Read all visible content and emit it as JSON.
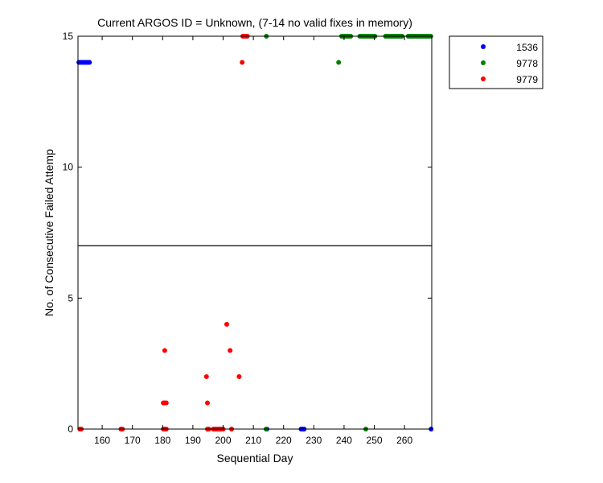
{
  "chart_data": {
    "type": "scatter",
    "title": "Current ARGOS ID = Unknown,  (7-14 no valid fixes in memory)",
    "xlabel": "Sequential Day",
    "ylabel": "No. of Consecutive Failed Attemp",
    "xlim": [
      152,
      269
    ],
    "ylim": [
      0,
      15
    ],
    "xticks": [
      "160",
      "170",
      "180",
      "190",
      "200",
      "210",
      "220",
      "230",
      "240",
      "250",
      "260"
    ],
    "yticks": [
      "0",
      "5",
      "10",
      "15"
    ],
    "threshold_line": 7,
    "legend_position": "outside-top-right",
    "series": [
      {
        "name": "1536",
        "color": "#0000ff",
        "points": [
          [
            152.3,
            14
          ],
          [
            152.8,
            14
          ],
          [
            153.3,
            14
          ],
          [
            153.8,
            14
          ],
          [
            154.3,
            14
          ],
          [
            154.8,
            14
          ],
          [
            155.3,
            14
          ],
          [
            155.8,
            14
          ],
          [
            214.5,
            0
          ],
          [
            225.8,
            0
          ],
          [
            226.3,
            0
          ],
          [
            226.8,
            0
          ],
          [
            268.8,
            0
          ]
        ]
      },
      {
        "name": "9778",
        "color": "#008000",
        "points": [
          [
            214.3,
            15
          ],
          [
            214.2,
            0
          ],
          [
            238.2,
            14
          ],
          [
            247.2,
            0
          ],
          [
            239.2,
            15
          ],
          [
            239.7,
            15
          ],
          [
            240.2,
            15
          ],
          [
            240.7,
            15
          ],
          [
            241.2,
            15
          ],
          [
            241.7,
            15
          ],
          [
            242.2,
            15
          ],
          [
            245.2,
            15
          ],
          [
            245.7,
            15
          ],
          [
            246.2,
            15
          ],
          [
            246.7,
            15
          ],
          [
            247.2,
            15
          ],
          [
            247.7,
            15
          ],
          [
            248.2,
            15
          ],
          [
            248.7,
            15
          ],
          [
            249.2,
            15
          ],
          [
            249.7,
            15
          ],
          [
            250.2,
            15
          ],
          [
            253.7,
            15
          ],
          [
            254.2,
            15
          ],
          [
            254.7,
            15
          ],
          [
            255.2,
            15
          ],
          [
            255.7,
            15
          ],
          [
            256.2,
            15
          ],
          [
            256.7,
            15
          ],
          [
            257.2,
            15
          ],
          [
            257.7,
            15
          ],
          [
            258.2,
            15
          ],
          [
            258.7,
            15
          ],
          [
            259.2,
            15
          ],
          [
            261.2,
            15
          ],
          [
            261.7,
            15
          ],
          [
            262.2,
            15
          ],
          [
            262.7,
            15
          ],
          [
            263.2,
            15
          ],
          [
            263.7,
            15
          ],
          [
            264.2,
            15
          ],
          [
            264.7,
            15
          ],
          [
            265.2,
            15
          ],
          [
            265.7,
            15
          ],
          [
            266.2,
            15
          ],
          [
            266.7,
            15
          ],
          [
            267.2,
            15
          ],
          [
            267.7,
            15
          ],
          [
            268.2,
            15
          ],
          [
            268.7,
            15
          ]
        ]
      },
      {
        "name": "9779",
        "color": "#ff0000",
        "points": [
          [
            152.6,
            0
          ],
          [
            153.1,
            0
          ],
          [
            166.2,
            0
          ],
          [
            166.7,
            0
          ],
          [
            180.2,
            0
          ],
          [
            180.7,
            0
          ],
          [
            181.2,
            0
          ],
          [
            180.2,
            1
          ],
          [
            180.7,
            1
          ],
          [
            181.2,
            1
          ],
          [
            180.7,
            3
          ],
          [
            194.5,
            2
          ],
          [
            194.8,
            1
          ],
          [
            194.8,
            0
          ],
          [
            195.3,
            0
          ],
          [
            196.8,
            0
          ],
          [
            197.3,
            0
          ],
          [
            197.8,
            0
          ],
          [
            198.3,
            0
          ],
          [
            198.8,
            0
          ],
          [
            199.3,
            0
          ],
          [
            200.0,
            0
          ],
          [
            201.2,
            4
          ],
          [
            202.3,
            3
          ],
          [
            202.8,
            0
          ],
          [
            205.3,
            2
          ],
          [
            206.3,
            14
          ],
          [
            206.5,
            15
          ],
          [
            207.0,
            15
          ],
          [
            207.5,
            15
          ],
          [
            208.0,
            15
          ]
        ]
      }
    ]
  }
}
